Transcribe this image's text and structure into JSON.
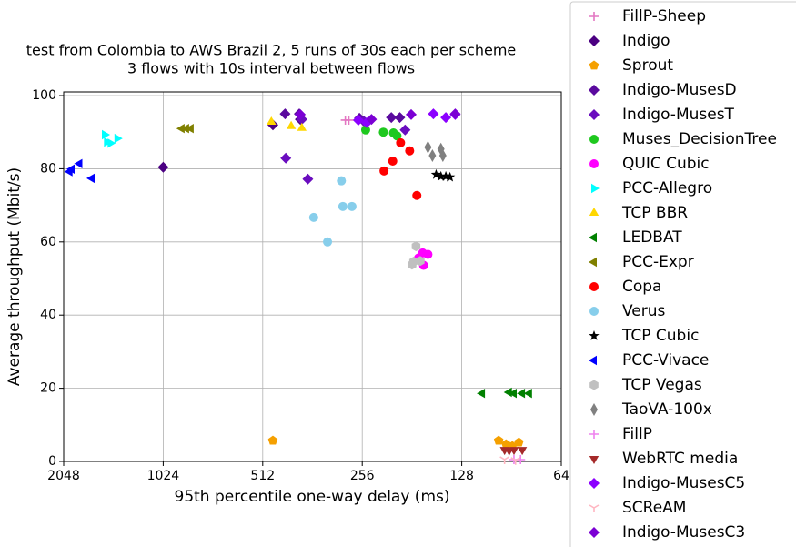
{
  "chart_data": {
    "type": "scatter",
    "title": "test from Colombia to AWS Brazil 2, 5 runs of 30s each per scheme",
    "subtitle": "3 flows with 10s interval between flows",
    "x_label": "95th percentile one-way delay (ms)",
    "y_label": "Average throughput (Mbit/s)",
    "x_scale": "log2",
    "xlim": [
      2048,
      64
    ],
    "xticks": [
      2048,
      1024,
      512,
      256,
      128,
      64
    ],
    "ylim": [
      0,
      101
    ],
    "yticks": [
      0,
      20,
      40,
      60,
      80,
      100
    ],
    "grid": true,
    "legend": "right",
    "series": [
      {
        "name": "FillP-Sheep",
        "color": "#e377c2",
        "marker": "plus",
        "x": [
          288,
          281
        ],
        "values": [
          93.3,
          93.3
        ]
      },
      {
        "name": "Indigo",
        "color": "#4b0082",
        "marker": "diamond",
        "x": [
          1024,
          477,
          394
        ],
        "values": [
          80.4,
          92,
          93.5
        ]
      },
      {
        "name": "Sprout",
        "color": "#f5a000",
        "marker": "pentagon",
        "x": [
          477,
          99,
          94,
          86,
          90
        ],
        "values": [
          5.7,
          5.7,
          4.7,
          5.2,
          4.2
        ]
      },
      {
        "name": "Indigo-MusesD",
        "color": "#5a0a9e",
        "marker": "diamond",
        "x": [
          438,
          397,
          261,
          209,
          197
        ],
        "values": [
          95,
          95,
          93.8,
          94,
          94
        ]
      },
      {
        "name": "Indigo-MusesT",
        "color": "#6a0dbf",
        "marker": "diamond",
        "x": [
          436,
          374,
          390,
          253,
          190
        ],
        "values": [
          82.9,
          77.2,
          93.5,
          93,
          90.6
        ]
      },
      {
        "name": "Muses_DecisionTree",
        "color": "#1ec81e",
        "marker": "circle",
        "x": [
          250,
          221,
          206,
          201
        ],
        "values": [
          90.6,
          90,
          89.8,
          89
        ]
      },
      {
        "name": "QUIC Cubic",
        "color": "#ff00ff",
        "marker": "circle",
        "x": [
          168,
          162,
          167,
          173
        ],
        "values": [
          57,
          56.6,
          53.6,
          55.6
        ]
      },
      {
        "name": "PCC-Allegro",
        "color": "#00ffff",
        "marker": "tri_right",
        "x": [
          1540,
          1480,
          1411,
          1518
        ],
        "values": [
          89.3,
          87,
          88.3,
          87.3
        ]
      },
      {
        "name": "TCP BBR",
        "color": "#ffd700",
        "marker": "tri_up",
        "x": [
          482,
          420,
          390
        ],
        "values": [
          92.8,
          91.6,
          91.1
        ]
      },
      {
        "name": "LEDBAT",
        "color": "#008000",
        "marker": "tri_left",
        "x": [
          111,
          92,
          89,
          84,
          80
        ],
        "values": [
          18.6,
          18.9,
          18.6,
          18.6,
          18.6
        ]
      },
      {
        "name": "PCC-Expr",
        "color": "#808000",
        "marker": "tri_left",
        "x": [
          899,
          871,
          844
        ],
        "values": [
          91,
          91,
          91
        ]
      },
      {
        "name": "Copa",
        "color": "#ff0000",
        "marker": "circle",
        "x": [
          220,
          207,
          196,
          184,
          175
        ],
        "values": [
          79.4,
          82.1,
          87.1,
          84.9,
          72.7
        ]
      },
      {
        "name": "Verus",
        "color": "#87ceeb",
        "marker": "circle",
        "x": [
          359,
          326,
          296,
          293,
          275
        ],
        "values": [
          66.7,
          60,
          76.7,
          69.7,
          69.7
        ]
      },
      {
        "name": "TCP Cubic",
        "color": "#000000",
        "marker": "star",
        "x": [
          153,
          148,
          143,
          139
        ],
        "values": [
          78.4,
          77.9,
          77.9,
          77.7
        ]
      },
      {
        "name": "PCC-Vivace",
        "color": "#0000ff",
        "marker": "tri_left",
        "x": [
          1963,
          1935,
          1833,
          1683
        ],
        "values": [
          79.2,
          79.9,
          81.4,
          77.4
        ]
      },
      {
        "name": "TCP Vegas",
        "color": "#c0c0c0",
        "marker": "hexagon",
        "x": [
          181,
          176,
          171,
          179
        ],
        "values": [
          53.8,
          58.8,
          54.8,
          54.6
        ]
      },
      {
        "name": "TaoVA-100x",
        "color": "#808080",
        "marker": "thin_diamond",
        "x": [
          162,
          157,
          148,
          146
        ],
        "values": [
          85.9,
          83.6,
          85.4,
          83.6
        ]
      },
      {
        "name": "FillP",
        "color": "#ee82ee",
        "marker": "plus",
        "x": [
          89,
          85
        ],
        "values": [
          0.5,
          0.5
        ]
      },
      {
        "name": "WebRTC media",
        "color": "#a52a2a",
        "marker": "tri_down",
        "x": [
          95,
          92,
          89,
          84
        ],
        "values": [
          3.2,
          3,
          3.2,
          3.2
        ]
      },
      {
        "name": "Indigo-MusesC5",
        "color": "#8b00ff",
        "marker": "diamond",
        "x": [
          263,
          248,
          156,
          143,
          134
        ],
        "values": [
          93.3,
          92.6,
          95,
          94,
          94.8
        ]
      },
      {
        "name": "SCReAM",
        "color": "#ffb6c1",
        "marker": "y_down",
        "x": [
          95,
          88
        ],
        "values": [
          0.5,
          0.3
        ]
      },
      {
        "name": "Indigo-MusesC3",
        "color": "#7b00d4",
        "marker": "diamond",
        "x": [
          240,
          182,
          134,
          394
        ],
        "values": [
          93.5,
          94.8,
          95,
          94.8
        ]
      }
    ]
  }
}
